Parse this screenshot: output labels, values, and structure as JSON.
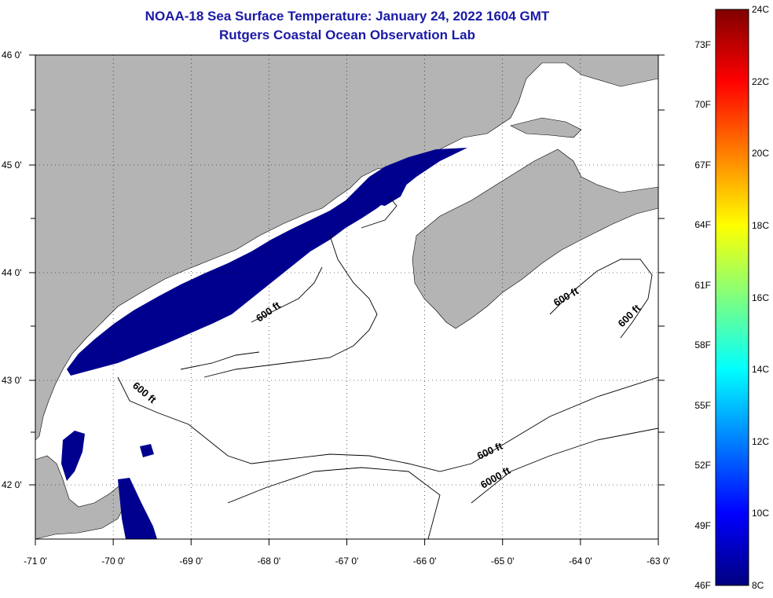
{
  "header": {
    "title_line1": "NOAA-18 Sea Surface Temperature:  January 24, 2022 1604 GMT",
    "title_line2": "Rutgers Coastal Ocean Observation Lab"
  },
  "axes": {
    "lon_ticks": [
      "-71 0'",
      "-70 0'",
      "-69 0'",
      "-68 0'",
      "-67 0'",
      "-66 0'",
      "-65 0'",
      "-64 0'",
      "-63 0'"
    ],
    "lat_ticks": [
      "46 0'",
      "45 0'",
      "44 0'",
      "43 0'",
      "42 0'"
    ],
    "lon_range": [
      -71,
      -63
    ],
    "lat_range": [
      41.5,
      46
    ]
  },
  "contours": {
    "labels": [
      "600 ft",
      "600 ft",
      "600 ft",
      "600 ft",
      "600 ft",
      "6000 ft"
    ]
  },
  "colorbar": {
    "f_labels": [
      "73F",
      "70F",
      "67F",
      "64F",
      "61F",
      "58F",
      "55F",
      "52F",
      "49F",
      "46F"
    ],
    "c_labels": [
      "24C",
      "22C",
      "20C",
      "18C",
      "16C",
      "14C",
      "12C",
      "10C",
      "8C"
    ],
    "c_range": [
      8,
      24
    ]
  },
  "colors": {
    "land": "#b4b4b4",
    "water_sst": "#00008f",
    "title": "#1a1aa6",
    "ocean_nodata": "#ffffff"
  }
}
